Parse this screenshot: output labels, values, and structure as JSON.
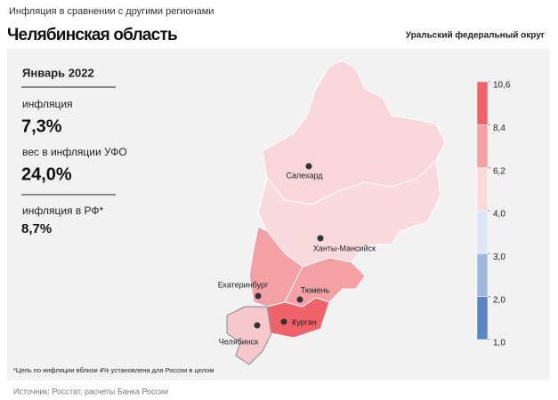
{
  "header": {
    "title": "Инфляция в сравнении с другими регионами",
    "region": "Челябинская область",
    "district": "Уральский федеральный округ"
  },
  "panel": {
    "period": "Январь 2022",
    "items": [
      {
        "label": "инфляция",
        "value": "7,3%"
      },
      {
        "label": "вес в инфляции УФО",
        "value": "24,0%"
      },
      {
        "label": "инфляция в РФ*",
        "value": "8,7%"
      }
    ]
  },
  "map": {
    "cities": [
      "Салехард",
      "Ханты-Мансийск",
      "Екатеринбург",
      "Тюмень",
      "Курган",
      "Челябинск"
    ],
    "legend": {
      "ticks": [
        {
          "value": 10.6,
          "label": "10,6"
        },
        {
          "value": 8.4,
          "label": "8,4"
        },
        {
          "value": 6.2,
          "label": "6,2"
        },
        {
          "value": 4.0,
          "label": "4,0"
        },
        {
          "value": 3.0,
          "label": "3,0"
        },
        {
          "value": 2.0,
          "label": "2,0"
        },
        {
          "value": 1.0,
          "label": "1,0"
        }
      ],
      "colors": [
        "#f0636b",
        "#f4a1a6",
        "#fadadd",
        "#dde6f3",
        "#9fb8dc",
        "#5a86c5"
      ]
    }
  },
  "footnote": "*Цель по инфляции вблизи 4% установлена для России в целом",
  "source": "Источник: Росстат, расчеты Банка России"
}
